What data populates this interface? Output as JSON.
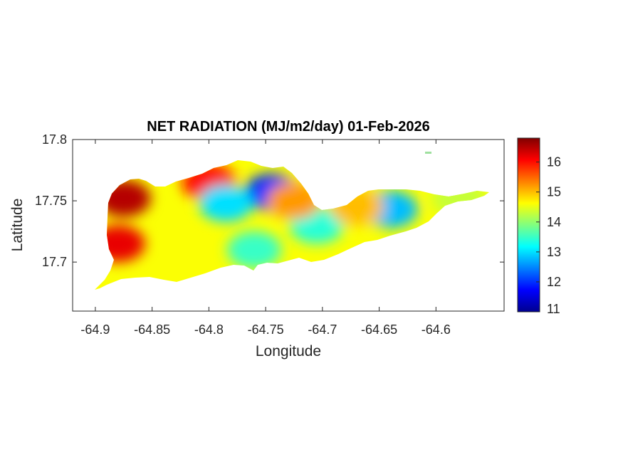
{
  "map": {
    "title": "NET RADIATION (MJ/m2/day) 01-Feb-2026",
    "xlabel": "Longitude",
    "ylabel": "Latitude",
    "x_ticks": [
      "-64.9",
      "-64.85",
      "-64.8",
      "-64.75",
      "-64.7",
      "-64.65",
      "-64.6"
    ],
    "x_tick_values": [
      -64.9,
      -64.85,
      -64.8,
      -64.75,
      -64.7,
      -64.65,
      -64.6
    ],
    "y_ticks": [
      "17.8",
      "17.75",
      "17.7"
    ],
    "y_tick_values": [
      17.8,
      17.75,
      17.7
    ],
    "xlim": [
      -64.92,
      -64.54
    ],
    "ylim": [
      17.66,
      17.8
    ],
    "colormap": "jet",
    "colorbar": {
      "ticks": [
        "16",
        "15",
        "14",
        "13",
        "12",
        "11"
      ],
      "tick_values": [
        16,
        15,
        14,
        13,
        12,
        11
      ],
      "range": [
        11,
        16.8
      ],
      "colors": [
        "#00008f",
        "#0000ff",
        "#0080ff",
        "#00ffff",
        "#80ff80",
        "#ffff00",
        "#ff8000",
        "#ff0000",
        "#800000"
      ]
    },
    "hotspots": [
      {
        "lon": -64.875,
        "lat": 17.752,
        "value": 16.5
      },
      {
        "lon": -64.88,
        "lat": 17.715,
        "value": 16.2
      },
      {
        "lon": -64.8,
        "lat": 17.765,
        "value": 16.0
      },
      {
        "lon": -64.745,
        "lat": 17.757,
        "value": 12.0
      },
      {
        "lon": -64.785,
        "lat": 17.748,
        "value": 13.0
      },
      {
        "lon": -64.705,
        "lat": 17.73,
        "value": 13.4
      },
      {
        "lon": -64.64,
        "lat": 17.743,
        "value": 12.8
      },
      {
        "lon": -64.76,
        "lat": 17.71,
        "value": 13.5
      },
      {
        "lon": -64.725,
        "lat": 17.75,
        "value": 15.2
      },
      {
        "lon": -64.67,
        "lat": 17.745,
        "value": 15.0
      },
      {
        "lon": -64.58,
        "lat": 17.752,
        "value": 14.3
      }
    ]
  }
}
